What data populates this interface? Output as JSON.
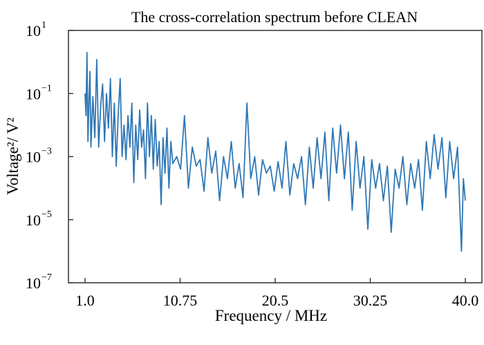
{
  "chart_data": {
    "type": "line",
    "title": "The cross-correlation spectrum before CLEAN",
    "xlabel": "Frequency / MHz",
    "ylabel": "Voltage²/ V²",
    "x_scale": "linear",
    "y_scale": "log",
    "xlim": [
      1.0,
      40.0
    ],
    "ylim": [
      1e-07,
      10
    ],
    "x_ticks": [
      {
        "value": 1.0,
        "label": "1.0"
      },
      {
        "value": 10.75,
        "label": "10.75"
      },
      {
        "value": 20.5,
        "label": "20.5"
      },
      {
        "value": 30.25,
        "label": "30.25"
      },
      {
        "value": 40.0,
        "label": "40.0"
      }
    ],
    "y_ticks": [
      {
        "value": 10,
        "label": "10",
        "exp": "1"
      },
      {
        "value": 0.1,
        "label": "10",
        "exp": "−1"
      },
      {
        "value": 0.001,
        "label": "10",
        "exp": "−3"
      },
      {
        "value": 1e-05,
        "label": "10",
        "exp": "−5"
      },
      {
        "value": 1e-07,
        "label": "10",
        "exp": "−7"
      }
    ],
    "grid": false,
    "line_color": "#2f77b5",
    "series": [
      {
        "name": "cross-correlation spectrum",
        "x": [
          1.0,
          1.1,
          1.2,
          1.3,
          1.4,
          1.5,
          1.6,
          1.8,
          2.0,
          2.2,
          2.4,
          2.6,
          2.8,
          3.0,
          3.2,
          3.4,
          3.6,
          3.8,
          4.0,
          4.2,
          4.4,
          4.6,
          4.8,
          5.0,
          5.2,
          5.4,
          5.6,
          5.8,
          6.0,
          6.2,
          6.4,
          6.6,
          6.8,
          7.0,
          7.2,
          7.4,
          7.6,
          7.8,
          8.0,
          8.2,
          8.4,
          8.6,
          8.8,
          9.0,
          9.2,
          9.4,
          9.6,
          9.8,
          10.0,
          10.4,
          10.8,
          11.2,
          11.6,
          12.0,
          12.4,
          12.8,
          13.2,
          13.6,
          14.0,
          14.4,
          14.8,
          15.2,
          15.6,
          16.0,
          16.4,
          16.8,
          17.2,
          17.6,
          18.0,
          18.4,
          18.8,
          19.2,
          19.6,
          20.0,
          20.4,
          20.8,
          21.2,
          21.6,
          22.0,
          22.4,
          22.8,
          23.2,
          23.6,
          24.0,
          24.4,
          24.8,
          25.2,
          25.6,
          26.0,
          26.4,
          26.8,
          27.2,
          27.6,
          28.0,
          28.4,
          28.8,
          29.2,
          29.6,
          30.0,
          30.4,
          30.8,
          31.2,
          31.6,
          32.0,
          32.4,
          32.8,
          33.2,
          33.6,
          34.0,
          34.4,
          34.8,
          35.2,
          35.6,
          36.0,
          36.4,
          36.8,
          37.2,
          37.6,
          38.0,
          38.4,
          38.8,
          39.2,
          39.6,
          39.8,
          40.0
        ],
        "y": [
          0.1,
          0.02,
          2.0,
          0.003,
          0.05,
          0.5,
          0.002,
          0.08,
          0.004,
          1.2,
          0.002,
          0.04,
          0.2,
          0.003,
          0.1,
          0.008,
          0.3,
          0.001,
          0.05,
          0.0005,
          0.02,
          0.3,
          0.001,
          0.01,
          0.0008,
          0.02,
          0.002,
          0.05,
          0.00015,
          0.01,
          0.0008,
          0.03,
          0.002,
          0.007,
          0.0002,
          0.05,
          0.001,
          0.02,
          0.0004,
          0.015,
          0.0005,
          0.003,
          3e-05,
          0.004,
          0.0003,
          0.008,
          0.0001,
          0.003,
          0.0006,
          0.001,
          0.0004,
          0.02,
          0.0001,
          0.002,
          0.0005,
          0.0008,
          8e-05,
          0.004,
          0.0003,
          0.0015,
          4e-05,
          0.001,
          0.0002,
          0.003,
          0.0001,
          0.0006,
          5e-05,
          0.05,
          0.0002,
          0.001,
          6e-05,
          0.0008,
          0.0003,
          0.0005,
          8e-05,
          0.0007,
          0.0001,
          0.003,
          6e-05,
          0.0006,
          0.0002,
          0.001,
          3e-05,
          0.002,
          0.0001,
          0.004,
          0.0002,
          0.006,
          4e-05,
          0.008,
          0.0003,
          0.01,
          0.0002,
          0.006,
          2e-05,
          0.003,
          0.0001,
          0.001,
          5e-06,
          0.0008,
          0.0001,
          0.0006,
          4e-05,
          0.0005,
          4e-06,
          0.0004,
          0.0001,
          0.001,
          3e-05,
          0.0006,
          0.0001,
          0.0008,
          2e-05,
          0.003,
          0.0002,
          0.005,
          0.0004,
          0.004,
          5e-05,
          0.003,
          0.0002,
          0.002,
          1e-06,
          0.0002,
          4e-05
        ]
      }
    ]
  }
}
